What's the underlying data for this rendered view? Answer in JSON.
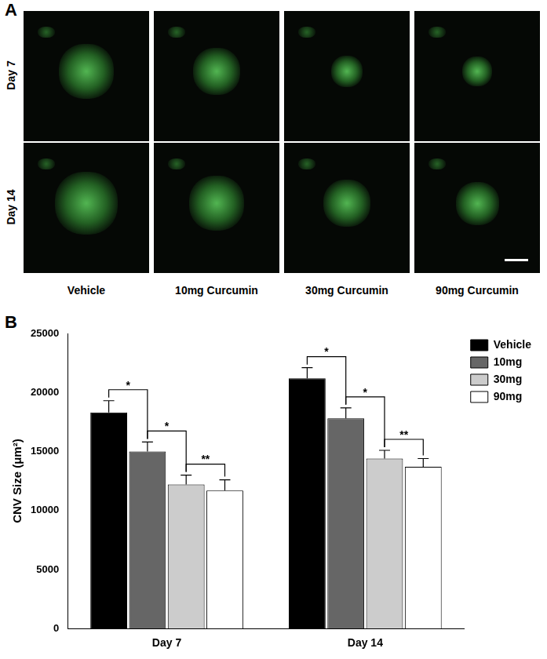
{
  "figure": {
    "panel_a": {
      "label": "A",
      "rows": [
        "Day 7",
        "Day 14"
      ],
      "columns": [
        "Vehicle",
        "10mg Curcumin",
        "30mg Curcumin",
        "90mg Curcumin"
      ]
    },
    "panel_b": {
      "label": "B"
    }
  },
  "chart_data": {
    "type": "bar",
    "y_label": "CNV Size (μm²)",
    "categories": [
      "Day 7",
      "Day 14"
    ],
    "series": [
      {
        "name": "Vehicle",
        "color": "#000000",
        "values": [
          18300,
          21200
        ],
        "errors": [
          1000,
          900
        ]
      },
      {
        "name": "10mg",
        "color": "#666666",
        "values": [
          15000,
          17800
        ],
        "errors": [
          800,
          900
        ]
      },
      {
        "name": "30mg",
        "color": "#cccccc",
        "values": [
          12200,
          14400
        ],
        "errors": [
          800,
          700
        ]
      },
      {
        "name": "90mg",
        "color": "#ffffff",
        "values": [
          11700,
          13700
        ],
        "errors": [
          900,
          700
        ]
      }
    ],
    "annotations": [
      {
        "text": "*",
        "category": "Day 7",
        "from": "Vehicle",
        "to": "10mg"
      },
      {
        "text": "*",
        "category": "Day 7",
        "from": "10mg",
        "to": "30mg"
      },
      {
        "text": "**",
        "category": "Day 7",
        "from": "30mg",
        "to": "90mg"
      },
      {
        "text": "*",
        "category": "Day 14",
        "from": "Vehicle",
        "to": "10mg"
      },
      {
        "text": "*",
        "category": "Day 14",
        "from": "10mg",
        "to": "30mg"
      },
      {
        "text": "**",
        "category": "Day 14",
        "from": "30mg",
        "to": "90mg"
      }
    ],
    "ylim": [
      0,
      25000
    ],
    "yticks": [
      0,
      5000,
      10000,
      15000,
      20000,
      25000
    ],
    "grid": false,
    "legend": "right"
  }
}
